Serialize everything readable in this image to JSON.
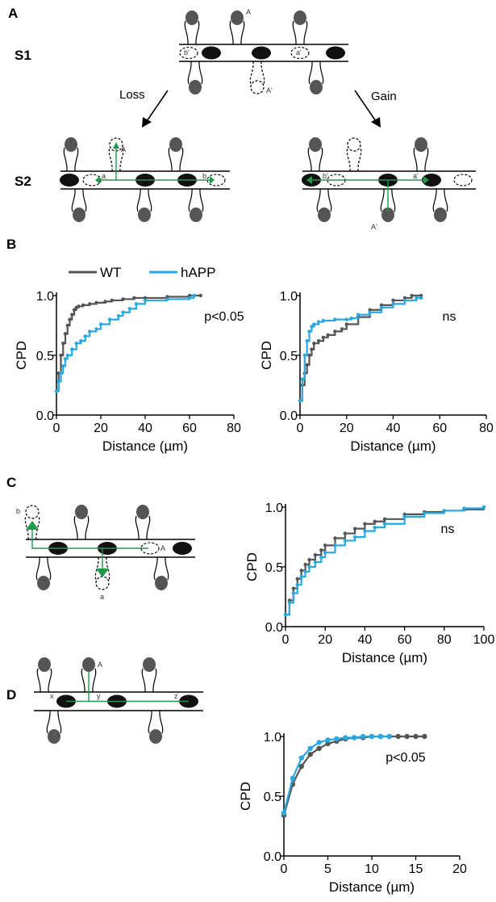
{
  "panels": {
    "A": {
      "label": "A",
      "s1": "S1",
      "s2": "S2",
      "loss": "Loss",
      "gain": "Gain",
      "top_labels": {
        "A": "A",
        "A_prime": "A'",
        "a": "a",
        "a_prime": "a'",
        "b": "b",
        "b_prime": "b'"
      }
    },
    "B": {
      "label": "B"
    },
    "C": {
      "label": "C",
      "labels": {
        "A": "A",
        "a": "a",
        "b": "b"
      }
    },
    "D": {
      "label": "D",
      "labels": {
        "A": "A",
        "x": "x",
        "y": "y",
        "z": "z"
      }
    }
  },
  "legend": {
    "wt": "WT",
    "happ": "hAPP"
  },
  "colors": {
    "wt": "#555555",
    "happ": "#29a9e0",
    "green": "#1d9a4a",
    "spine": "#555555"
  },
  "chart_data": [
    {
      "id": "B-left",
      "type": "line",
      "xlabel": "Distance (µm)",
      "ylabel": "CPD",
      "xlim": [
        0,
        80
      ],
      "ylim": [
        0,
        1.0
      ],
      "xticks": [
        "0",
        "20",
        "40",
        "60",
        "80"
      ],
      "yticks": [
        "0.0",
        "0.5",
        "1.0"
      ],
      "annotation": "p<0.05",
      "series": [
        {
          "name": "WT",
          "x": [
            0,
            1,
            2,
            3,
            4,
            5,
            6,
            7,
            8,
            9,
            10,
            12,
            15,
            18,
            22,
            25,
            30,
            35,
            40,
            50,
            60,
            65
          ],
          "y": [
            0.2,
            0.35,
            0.5,
            0.6,
            0.68,
            0.75,
            0.8,
            0.84,
            0.88,
            0.9,
            0.91,
            0.92,
            0.93,
            0.94,
            0.95,
            0.96,
            0.97,
            0.98,
            0.98,
            0.99,
            1.0,
            1.0
          ]
        },
        {
          "name": "hAPP",
          "x": [
            0,
            1,
            2,
            3,
            4,
            5,
            7,
            9,
            11,
            13,
            15,
            18,
            20,
            24,
            28,
            30,
            33,
            36,
            40,
            50,
            60,
            62
          ],
          "y": [
            0.2,
            0.28,
            0.35,
            0.41,
            0.47,
            0.5,
            0.55,
            0.6,
            0.62,
            0.66,
            0.7,
            0.72,
            0.76,
            0.8,
            0.83,
            0.86,
            0.89,
            0.93,
            0.96,
            0.97,
            0.98,
            1.0
          ]
        }
      ]
    },
    {
      "id": "B-right",
      "type": "line",
      "xlabel": "Distance (µm)",
      "ylabel": "CPD",
      "xlim": [
        0,
        80
      ],
      "ylim": [
        0,
        1.0
      ],
      "xticks": [
        "0",
        "20",
        "40",
        "60",
        "80"
      ],
      "yticks": [
        "0.0",
        "0.5",
        "1.0"
      ],
      "annotation": "ns",
      "series": [
        {
          "name": "WT",
          "x": [
            0,
            1,
            2,
            3,
            4,
            5,
            6,
            8,
            10,
            12,
            15,
            18,
            20,
            25,
            30,
            35,
            40,
            45,
            48,
            52
          ],
          "y": [
            0.12,
            0.25,
            0.35,
            0.42,
            0.5,
            0.55,
            0.6,
            0.62,
            0.65,
            0.67,
            0.7,
            0.72,
            0.76,
            0.82,
            0.88,
            0.92,
            0.96,
            0.98,
            1.0,
            1.0
          ]
        },
        {
          "name": "hAPP",
          "x": [
            0,
            1,
            2,
            3,
            4,
            5,
            6,
            8,
            10,
            15,
            20,
            22,
            25,
            30,
            35,
            40,
            45,
            50,
            52
          ],
          "y": [
            0.12,
            0.3,
            0.5,
            0.62,
            0.7,
            0.74,
            0.76,
            0.78,
            0.79,
            0.8,
            0.8,
            0.81,
            0.84,
            0.86,
            0.9,
            0.93,
            0.96,
            0.98,
            0.98
          ]
        }
      ]
    },
    {
      "id": "C",
      "type": "line",
      "xlabel": "Distance (µm)",
      "ylabel": "CPD",
      "xlim": [
        0,
        100
      ],
      "ylim": [
        0,
        1.0
      ],
      "xticks": [
        "0",
        "20",
        "40",
        "60",
        "80",
        "100"
      ],
      "yticks": [
        "0.0",
        "0.5",
        "1.0"
      ],
      "annotation": "ns",
      "series": [
        {
          "name": "WT",
          "x": [
            0,
            2,
            4,
            6,
            8,
            10,
            12,
            15,
            18,
            20,
            25,
            30,
            35,
            40,
            45,
            50,
            60,
            70,
            80,
            90,
            100
          ],
          "y": [
            0.1,
            0.22,
            0.32,
            0.4,
            0.47,
            0.52,
            0.56,
            0.6,
            0.64,
            0.68,
            0.74,
            0.78,
            0.82,
            0.86,
            0.88,
            0.9,
            0.94,
            0.96,
            0.97,
            0.98,
            1.0
          ]
        },
        {
          "name": "hAPP",
          "x": [
            0,
            2,
            4,
            6,
            8,
            10,
            12,
            15,
            18,
            20,
            25,
            30,
            35,
            40,
            45,
            50,
            60,
            70,
            80,
            90,
            100
          ],
          "y": [
            0.1,
            0.2,
            0.28,
            0.35,
            0.42,
            0.46,
            0.5,
            0.54,
            0.58,
            0.62,
            0.68,
            0.72,
            0.75,
            0.8,
            0.83,
            0.86,
            0.92,
            0.95,
            0.97,
            0.99,
            1.0
          ]
        }
      ]
    },
    {
      "id": "D",
      "type": "line",
      "xlabel": "Distance (µm)",
      "ylabel": "CPD",
      "xlim": [
        0,
        20
      ],
      "ylim": [
        0,
        1.0
      ],
      "xticks": [
        "0",
        "5",
        "10",
        "15",
        "20"
      ],
      "yticks": [
        "0.0",
        "0.5",
        "1.0"
      ],
      "annotation": "p<0.05",
      "series": [
        {
          "name": "WT",
          "x": [
            0,
            1,
            2,
            3,
            4,
            5,
            6,
            7,
            8,
            9,
            10,
            11,
            12,
            13,
            14,
            15,
            16
          ],
          "y": [
            0.34,
            0.6,
            0.75,
            0.85,
            0.9,
            0.94,
            0.96,
            0.98,
            0.99,
            0.99,
            1.0,
            1.0,
            1.0,
            1.0,
            1.0,
            1.0,
            1.0
          ]
        },
        {
          "name": "hAPP",
          "x": [
            0,
            1,
            2,
            3,
            4,
            5,
            6,
            7,
            8,
            9,
            10,
            11,
            12
          ],
          "y": [
            0.36,
            0.65,
            0.82,
            0.9,
            0.95,
            0.97,
            0.98,
            0.99,
            0.99,
            1.0,
            1.0,
            1.0,
            1.0
          ]
        }
      ]
    }
  ]
}
